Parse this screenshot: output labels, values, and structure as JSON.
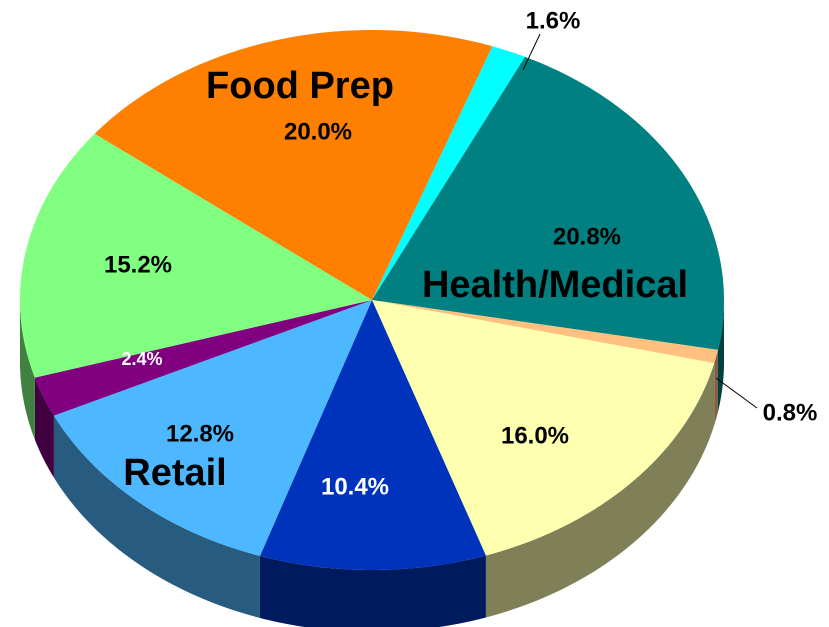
{
  "chart_data": {
    "type": "pie",
    "categories": [
      null,
      "Health/Medical",
      null,
      null,
      null,
      "Retail",
      null,
      null,
      "Food Prep"
    ],
    "values": [
      1.6,
      20.8,
      0.8,
      16.0,
      10.4,
      12.8,
      2.4,
      15.2,
      20.0
    ],
    "value_labels": [
      "1.6%",
      "20.8%",
      "0.8%",
      "16.0%",
      "10.4%",
      "12.8%",
      "2.4%",
      "15.2%",
      "20.0%"
    ],
    "colors": [
      "#00ffff",
      "#008080",
      "#ffc080",
      "#ffffb0",
      "#0033bb",
      "#4db8ff",
      "#800080",
      "#80ff80",
      "#ff8000"
    ]
  }
}
